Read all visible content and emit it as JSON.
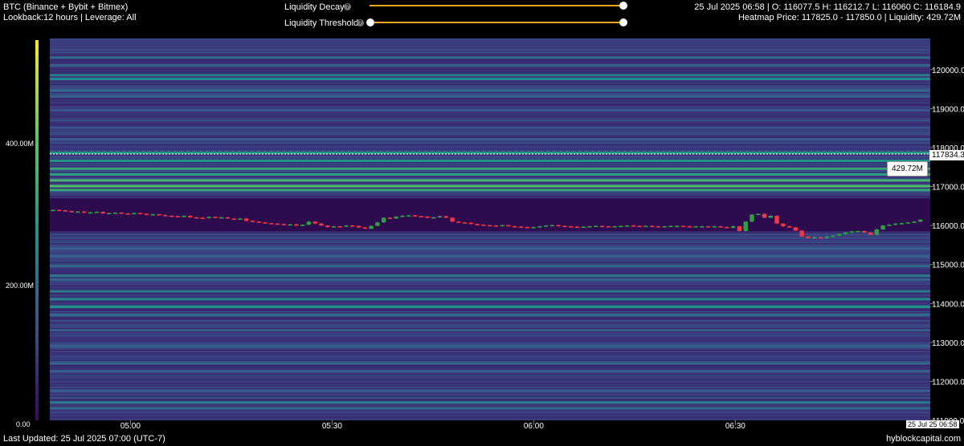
{
  "header": {
    "symbol": "BTC (Binance + Bybit + Bitmex)",
    "params": "Lookback:12 hours | Leverage: All",
    "decay_label": "Liquidity Decay",
    "threshold_label": "Liquidity Threshold",
    "ohlc": "25 Jul 2025 06:58 | O: 116077.5 H: 116212.7 L: 116060 C: 116184.9",
    "heatmap_info": "Heatmap Price: 117825.0 - 117850.0 | Liquidity: 429.72M"
  },
  "controls": {
    "decay_value": 1.0,
    "threshold_value": 0.0,
    "accent_color": "#f5a524"
  },
  "footer": {
    "last_updated": "Last Updated: 25 Jul 2025 07:00 (UTC-7)",
    "brand": "hyblockcapital.com"
  },
  "chart_data": {
    "type": "heatmap",
    "title": "",
    "y_axis": {
      "range": [
        111000,
        120800
      ],
      "ticks": [
        "120000.0",
        "119000.0",
        "118000.0",
        "117000.0",
        "116000.0",
        "115000.0",
        "114000.0",
        "113000.0",
        "112000.0",
        "111000.0"
      ],
      "tick_values": [
        120000,
        119000,
        118000,
        117000,
        116000,
        115000,
        114000,
        113000,
        112000,
        111000
      ]
    },
    "x_axis": {
      "range_minutes": [
        0,
        131
      ],
      "ticks": [
        "05:00",
        "05:30",
        "06:00",
        "06:30"
      ],
      "tick_minutes": [
        12,
        42,
        72,
        102
      ],
      "last_label": "25 Jul 25 06:58"
    },
    "colorbar": {
      "ticks": [
        "0.00",
        "200.00M",
        "400.00M"
      ],
      "tick_values": [
        0,
        200,
        400
      ],
      "max": 525,
      "colors": [
        "#3a0a5c",
        "#3b528b",
        "#21918c",
        "#5ec962",
        "#fde725"
      ]
    },
    "current_price": "117834.3",
    "current_price_value": 117834.3,
    "hover_liquidity": "429.72M",
    "liquidity_bands": [
      {
        "price": 120300,
        "level": 0.35
      },
      {
        "price": 120100,
        "level": 0.3
      },
      {
        "price": 119850,
        "level": 0.4
      },
      {
        "price": 119750,
        "level": 0.45
      },
      {
        "price": 119450,
        "level": 0.35
      },
      {
        "price": 119300,
        "level": 0.3
      },
      {
        "price": 118950,
        "level": 0.25
      },
      {
        "price": 118500,
        "level": 0.25
      },
      {
        "price": 118200,
        "level": 0.3
      },
      {
        "price": 117850,
        "level": 0.55
      },
      {
        "price": 117650,
        "level": 0.5
      },
      {
        "price": 117450,
        "level": 0.6
      },
      {
        "price": 117300,
        "level": 0.55
      },
      {
        "price": 117150,
        "level": 0.65
      },
      {
        "price": 117000,
        "level": 0.7
      },
      {
        "price": 116900,
        "level": 0.6
      },
      {
        "price": 115400,
        "level": 0.3
      },
      {
        "price": 115200,
        "level": 0.3
      },
      {
        "price": 114950,
        "level": 0.35
      },
      {
        "price": 114700,
        "level": 0.4
      },
      {
        "price": 114600,
        "level": 0.3
      },
      {
        "price": 114300,
        "level": 0.4
      },
      {
        "price": 114100,
        "level": 0.45
      },
      {
        "price": 113900,
        "level": 0.5
      },
      {
        "price": 113700,
        "level": 0.35
      },
      {
        "price": 113300,
        "level": 0.3
      },
      {
        "price": 112900,
        "level": 0.3
      },
      {
        "price": 112450,
        "level": 0.35
      },
      {
        "price": 112250,
        "level": 0.3
      },
      {
        "price": 111750,
        "level": 0.3
      },
      {
        "price": 111450,
        "level": 0.4
      },
      {
        "price": 111300,
        "level": 0.35
      }
    ],
    "candles_close": [
      116400,
      116390,
      116370,
      116350,
      116360,
      116330,
      116340,
      116350,
      116310,
      116320,
      116330,
      116310,
      116300,
      116320,
      116300,
      116280,
      116290,
      116270,
      116250,
      116240,
      116230,
      116250,
      116210,
      116200,
      116190,
      116220,
      116200,
      116210,
      116180,
      116170,
      116180,
      116120,
      116100,
      116080,
      116060,
      116050,
      116040,
      116020,
      116030,
      116000,
      116020,
      116100,
      116050,
      116000,
      115960,
      115980,
      115970,
      116000,
      115990,
      115950,
      115920,
      115990,
      116080,
      116200,
      116180,
      116230,
      116250,
      116260,
      116240,
      116230,
      116200,
      116210,
      116240,
      116200,
      116100,
      116080,
      116070,
      116040,
      116020,
      116010,
      116000,
      115990,
      116010,
      115980,
      115970,
      115960,
      115950,
      115960,
      115980,
      116000,
      116010,
      115990,
      115980,
      115970,
      115960,
      115970,
      115980,
      115990,
      115980,
      115970,
      115980,
      115990,
      116000,
      115990,
      115980,
      115990,
      115980,
      115970,
      115980,
      115990,
      115990,
      115980,
      115970,
      115980,
      115980,
      115970,
      115980,
      115960,
      115940,
      115980,
      115860,
      116100,
      116280,
      116300,
      116200,
      116250,
      116050,
      115980,
      115950,
      115870,
      115720,
      115680,
      115700,
      115680,
      115720,
      115740,
      115780,
      115820,
      115850,
      115860,
      115820,
      115760,
      115900,
      116000,
      116020,
      116050,
      116060,
      116080,
      116100,
      116150
    ]
  }
}
